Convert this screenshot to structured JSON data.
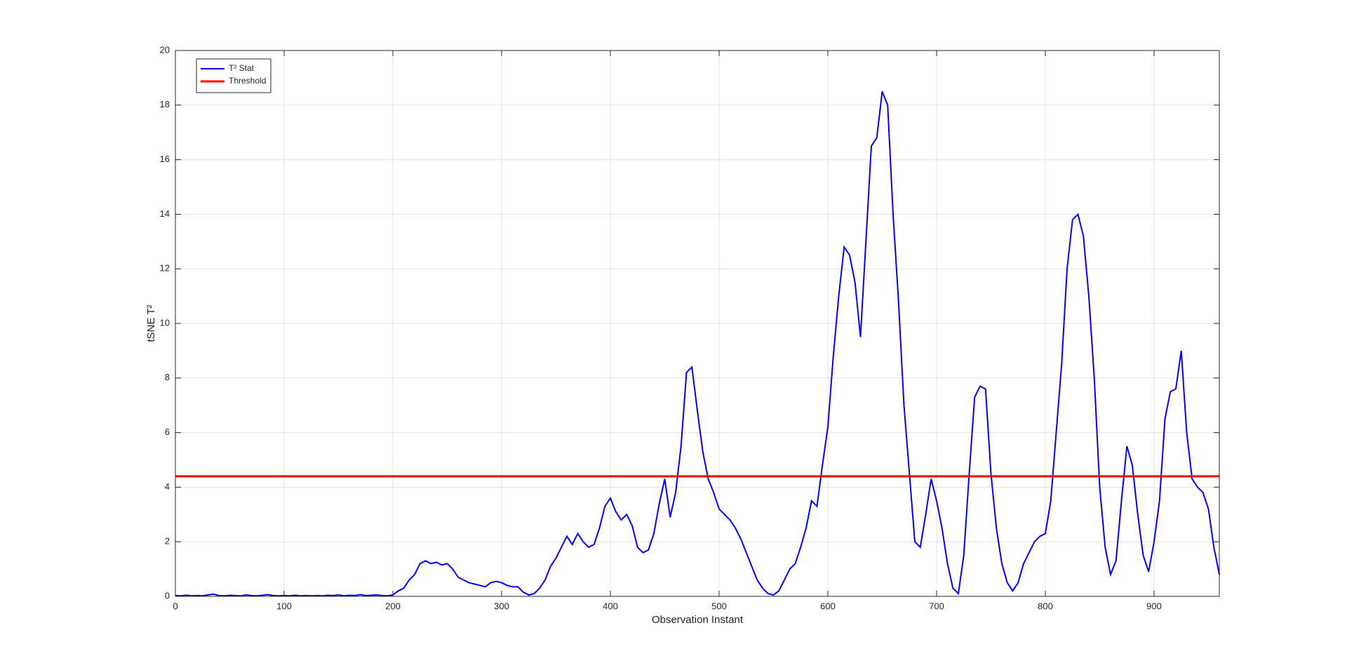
{
  "chart_data": {
    "type": "line",
    "xlabel": "Observation Instant",
    "ylabel": "tSNE T²",
    "xlim": [
      0,
      960
    ],
    "ylim": [
      0,
      20
    ],
    "xticks": [
      0,
      100,
      200,
      300,
      400,
      500,
      600,
      700,
      800,
      900
    ],
    "yticks": [
      0,
      2,
      4,
      6,
      8,
      10,
      12,
      14,
      16,
      18,
      20
    ],
    "grid": true,
    "legend": "upper-left",
    "x": [
      0,
      5,
      10,
      15,
      20,
      25,
      30,
      35,
      40,
      45,
      50,
      55,
      60,
      65,
      70,
      75,
      80,
      85,
      90,
      95,
      100,
      105,
      110,
      115,
      120,
      125,
      130,
      135,
      140,
      145,
      150,
      155,
      160,
      165,
      170,
      175,
      180,
      185,
      190,
      195,
      200,
      205,
      210,
      215,
      220,
      225,
      230,
      235,
      240,
      245,
      250,
      255,
      260,
      265,
      270,
      275,
      280,
      285,
      290,
      295,
      300,
      305,
      310,
      315,
      320,
      325,
      330,
      335,
      340,
      345,
      350,
      355,
      360,
      365,
      370,
      375,
      380,
      385,
      390,
      395,
      400,
      405,
      410,
      415,
      420,
      425,
      430,
      435,
      440,
      445,
      450,
      455,
      460,
      465,
      470,
      475,
      480,
      485,
      490,
      495,
      500,
      505,
      510,
      515,
      520,
      525,
      530,
      535,
      540,
      545,
      550,
      555,
      560,
      565,
      570,
      575,
      580,
      585,
      590,
      595,
      600,
      605,
      610,
      615,
      620,
      625,
      630,
      635,
      640,
      645,
      650,
      655,
      660,
      665,
      670,
      675,
      680,
      685,
      690,
      695,
      700,
      705,
      710,
      715,
      720,
      725,
      730,
      735,
      740,
      745,
      750,
      755,
      760,
      765,
      770,
      775,
      780,
      785,
      790,
      795,
      800,
      805,
      810,
      815,
      820,
      825,
      830,
      835,
      840,
      845,
      850,
      855,
      860,
      865,
      870,
      875,
      880,
      885,
      890,
      895,
      900,
      905,
      910,
      915,
      920,
      925,
      930,
      935,
      940,
      945,
      950,
      955,
      960
    ],
    "series": [
      {
        "name": "T² Stat",
        "color": "#0000ff",
        "values": [
          0.03,
          0.02,
          0.04,
          0.02,
          0.03,
          0.02,
          0.05,
          0.08,
          0.03,
          0.02,
          0.04,
          0.03,
          0.02,
          0.05,
          0.03,
          0.02,
          0.04,
          0.06,
          0.03,
          0.02,
          0.03,
          0.02,
          0.04,
          0.02,
          0.03,
          0.02,
          0.03,
          0.02,
          0.04,
          0.03,
          0.05,
          0.02,
          0.04,
          0.03,
          0.06,
          0.03,
          0.04,
          0.05,
          0.03,
          0.02,
          0.05,
          0.2,
          0.3,
          0.6,
          0.8,
          1.2,
          1.3,
          1.2,
          1.25,
          1.15,
          1.2,
          1.0,
          0.7,
          0.6,
          0.5,
          0.45,
          0.4,
          0.35,
          0.5,
          0.55,
          0.5,
          0.4,
          0.35,
          0.35,
          0.15,
          0.05,
          0.1,
          0.3,
          0.6,
          1.1,
          1.4,
          1.8,
          2.2,
          1.9,
          2.3,
          2.0,
          1.8,
          1.9,
          2.5,
          3.3,
          3.6,
          3.1,
          2.8,
          3.0,
          2.6,
          1.8,
          1.6,
          1.7,
          2.3,
          3.4,
          4.3,
          2.9,
          3.8,
          5.5,
          8.2,
          8.4,
          6.8,
          5.3,
          4.3,
          3.8,
          3.2,
          3.0,
          2.8,
          2.5,
          2.1,
          1.6,
          1.1,
          0.6,
          0.3,
          0.1,
          0.05,
          0.2,
          0.6,
          1.0,
          1.2,
          1.8,
          2.5,
          3.5,
          3.3,
          4.8,
          6.2,
          8.8,
          11.0,
          12.8,
          12.5,
          11.5,
          9.5,
          13.0,
          16.5,
          16.8,
          18.5,
          18.0,
          14.0,
          10.8,
          7.0,
          4.5,
          2.0,
          1.8,
          3.0,
          4.3,
          3.5,
          2.5,
          1.2,
          0.3,
          0.1,
          1.5,
          4.5,
          7.3,
          7.7,
          7.6,
          4.5,
          2.5,
          1.2,
          0.5,
          0.2,
          0.5,
          1.2,
          1.6,
          2.0,
          2.2,
          2.3,
          3.5,
          6.0,
          8.5,
          12.0,
          13.8,
          14.0,
          13.2,
          11.0,
          8.0,
          4.0,
          1.8,
          0.8,
          1.3,
          3.5,
          5.5,
          4.8,
          3.0,
          1.5,
          0.9,
          2.0,
          3.5,
          6.5,
          7.5,
          7.6,
          9.0,
          6.0,
          4.3,
          4.0,
          3.8,
          3.2,
          1.8,
          0.8
        ]
      },
      {
        "name": "Threshold",
        "color": "#ff0000",
        "x": [
          0,
          960
        ],
        "values": [
          4.4,
          4.4
        ]
      }
    ]
  }
}
